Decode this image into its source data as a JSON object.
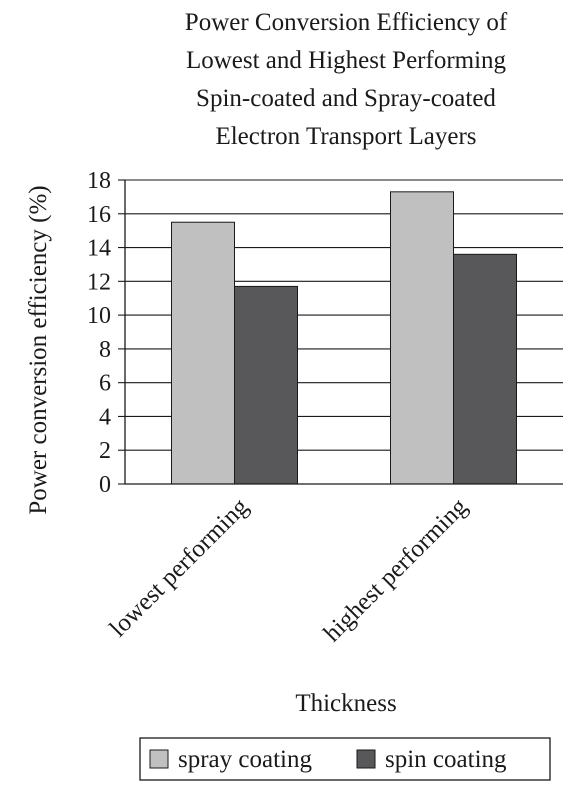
{
  "chart_data": {
    "type": "bar",
    "title_lines": [
      "Power Conversion Efficiency of",
      "Lowest and Highest Performing",
      "Spin-coated and Spray-coated",
      "Electron Transport Layers"
    ],
    "xlabel": "Thickness",
    "ylabel": "Power conversion efficiency (%)",
    "ylim": [
      0,
      18
    ],
    "yticks": [
      "0",
      "2",
      "4",
      "6",
      "8",
      "10",
      "12",
      "14",
      "16",
      "18"
    ],
    "categories": [
      "lowest performing",
      "highest performing"
    ],
    "series": [
      {
        "name": "spray coating",
        "values": [
          15.5,
          17.3
        ],
        "color": "#c0c0c0"
      },
      {
        "name": "spin coating",
        "values": [
          11.7,
          13.6
        ],
        "color": "#58585a"
      }
    ],
    "grid": true,
    "legend_position": "bottom"
  }
}
